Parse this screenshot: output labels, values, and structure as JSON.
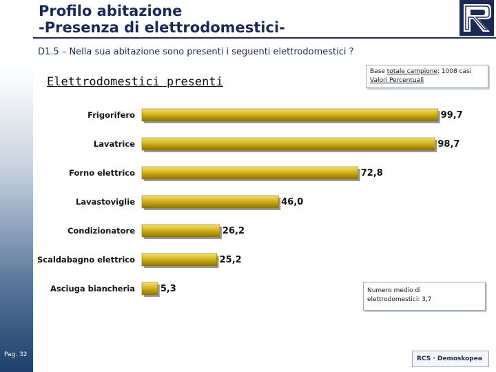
{
  "header": {
    "title_line1": "Profilo abitazione",
    "title_line2": "-Presenza di elettrodomestici-"
  },
  "question": "D1.5 – Nella sua abitazione sono presenti i seguenti elettrodomestici ?",
  "subtitle": "Elettrodomestici presenti",
  "base_note": {
    "line1_prefix": "Base ",
    "line1_underlined": "totale campione",
    "line1_suffix": ": 1008 casi",
    "line2": "Valori Percentuali"
  },
  "mean_note": {
    "line1": "Numero medio di",
    "line2": "elettrodomestici: 3,7"
  },
  "footer": {
    "page": "Pag. 32",
    "logo_text": "RCS · Demoskopea"
  },
  "colors": {
    "bar": "#d4b31a",
    "bar_light": "#f4e27a",
    "bar_dark": "#8e7208",
    "text": "#111111",
    "title": "#1b2a55"
  },
  "chart_data": {
    "type": "bar",
    "orientation": "horizontal",
    "title": "Elettrodomestici presenti",
    "categories": [
      "Frigorifero",
      "Lavatrice",
      "Forno elettrico",
      "Lavastoviglie",
      "Condizionatore",
      "Scaldabagno elettrico",
      "Asciuga biancheria"
    ],
    "values": [
      99.7,
      98.7,
      72.8,
      46.0,
      26.2,
      25.2,
      5.3
    ],
    "value_labels": [
      "99,7",
      "98,7",
      "72,8",
      "46,0",
      "26,2",
      "25,2",
      "5,3"
    ],
    "xlim": [
      0,
      100
    ],
    "unit": "%",
    "grid": false,
    "legend": "none"
  }
}
